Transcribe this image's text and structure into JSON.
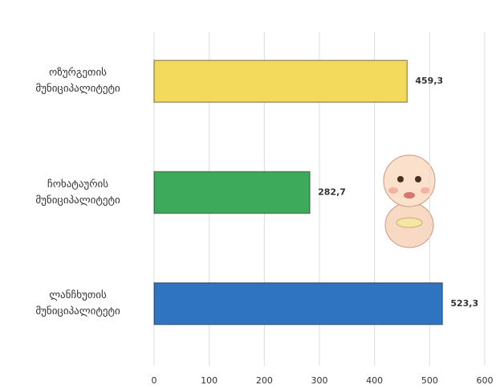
{
  "chart_data": {
    "type": "bar",
    "orientation": "horizontal",
    "categories": [
      "ოზურგეთის მუნიციპალიტეტი",
      "ჩოხატაურის მუნიციპალიტეტი",
      "ლანჩხუთის მუნიციპალიტეტი"
    ],
    "values": [
      459.3,
      282.7,
      523.3
    ],
    "value_labels": [
      "459,3",
      "282,7",
      "523,3"
    ],
    "colors": [
      "#f4da5c",
      "#3da95a",
      "#2f74c1"
    ],
    "xlim": [
      0,
      600
    ],
    "xticks": [
      0,
      100,
      200,
      300,
      400,
      500,
      600
    ],
    "grid": true
  }
}
